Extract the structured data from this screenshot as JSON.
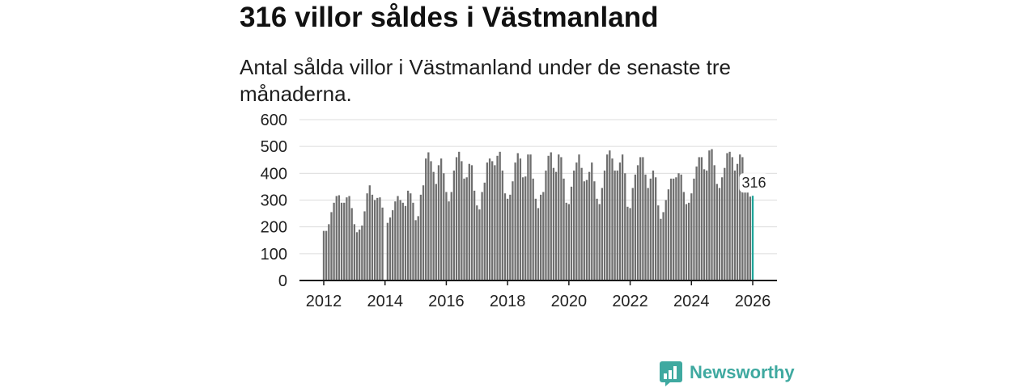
{
  "chart_data": {
    "type": "bar",
    "title": "316 villor såldes i Västmanland",
    "subtitle": "Antal sålda villor i Västmanland under de senaste tre månaderna.",
    "xlabel": "",
    "ylabel": "",
    "x_start": 2012,
    "x_step": 0.08333333333,
    "values": [
      185,
      185,
      210,
      255,
      290,
      315,
      318,
      290,
      290,
      310,
      315,
      270,
      210,
      180,
      190,
      205,
      258,
      325,
      355,
      320,
      300,
      308,
      310,
      272,
      null,
      215,
      235,
      262,
      295,
      315,
      300,
      290,
      278,
      335,
      325,
      290,
      225,
      240,
      320,
      355,
      455,
      478,
      445,
      405,
      360,
      430,
      455,
      400,
      330,
      295,
      330,
      410,
      460,
      480,
      445,
      380,
      385,
      435,
      430,
      335,
      280,
      265,
      330,
      365,
      440,
      455,
      445,
      430,
      465,
      480,
      410,
      325,
      305,
      320,
      370,
      440,
      475,
      455,
      385,
      388,
      470,
      470,
      380,
      305,
      270,
      320,
      330,
      410,
      465,
      478,
      420,
      405,
      470,
      460,
      380,
      290,
      285,
      350,
      410,
      440,
      470,
      420,
      370,
      375,
      405,
      440,
      370,
      305,
      285,
      345,
      410,
      470,
      485,
      455,
      410,
      410,
      440,
      470,
      400,
      275,
      270,
      345,
      395,
      430,
      460,
      460,
      395,
      345,
      380,
      410,
      385,
      280,
      230,
      255,
      300,
      340,
      380,
      380,
      385,
      400,
      395,
      330,
      285,
      290,
      325,
      380,
      425,
      460,
      460,
      415,
      410,
      485,
      490,
      430,
      360,
      345,
      385,
      420,
      475,
      480,
      460,
      410,
      435,
      470,
      460,
      390,
      340,
      313,
      316
    ],
    "ylim": [
      0,
      600
    ],
    "yticks": [
      0,
      100,
      200,
      300,
      400,
      500,
      600
    ],
    "xticks": [
      2012,
      2014,
      2016,
      2018,
      2020,
      2022,
      2024,
      2026
    ],
    "grid": true,
    "highlight": {
      "index": 168,
      "label": "316"
    }
  },
  "logo": {
    "text": "Newsworthy",
    "icon": "bar-chart-speech-bubble-icon"
  },
  "colors": {
    "bar": "#6f6f6f",
    "highlight": "#1ea59a",
    "grid": "#dcdcdc",
    "axis": "#1a1a1a",
    "label_background": "#ffffff",
    "brand": "#3fa9a0",
    "brand_icon_bars": "#ffffff"
  }
}
